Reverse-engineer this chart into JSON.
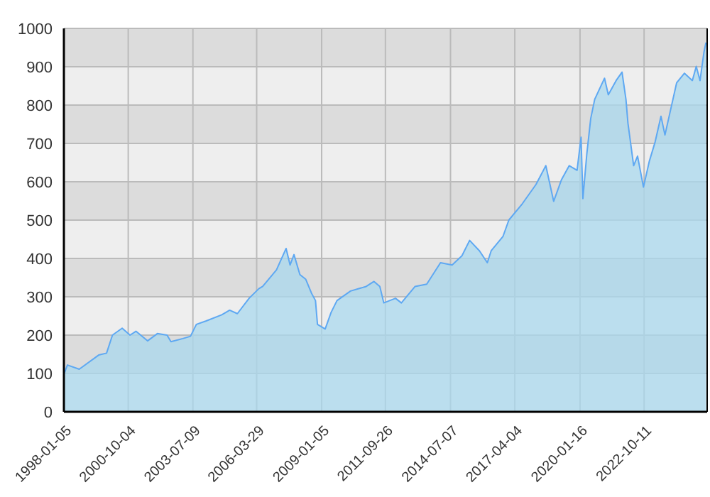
{
  "chart_data": {
    "type": "area",
    "x": [
      "1998-01-10",
      "1998-03",
      "1998-09",
      "1999-07",
      "1999-11",
      "2000-02",
      "2000-07",
      "2000-11",
      "2001-02",
      "2001-08",
      "2002-01",
      "2002-06",
      "2002-08",
      "2003-02",
      "2003-06",
      "2003-09",
      "2004-02",
      "2004-10",
      "2005-02",
      "2005-06",
      "2005-12",
      "2006-05",
      "2006-07",
      "2007-02",
      "2007-07",
      "2007-09",
      "2007-11",
      "2008-02",
      "2008-05",
      "2008-08",
      "2008-10",
      "2008-11",
      "2009-03",
      "2009-06",
      "2009-09",
      "2010-04",
      "2010-12",
      "2011-04",
      "2011-07",
      "2011-09",
      "2012-03",
      "2012-06",
      "2013-01",
      "2013-07",
      "2014-02",
      "2014-08",
      "2015-01",
      "2015-05",
      "2015-10",
      "2016-02",
      "2016-04",
      "2016-10",
      "2017-01",
      "2017-08",
      "2018-03",
      "2018-08",
      "2018-12",
      "2019-04",
      "2019-08",
      "2019-12",
      "2020-02",
      "2020-03",
      "2020-05",
      "2020-07",
      "2020-09",
      "2021-02",
      "2021-04",
      "2021-08",
      "2021-11",
      "2022-01",
      "2022-02",
      "2022-05",
      "2022-07",
      "2022-10",
      "2023-01",
      "2023-04",
      "2023-07",
      "2023-09",
      "2023-12",
      "2024-03",
      "2024-07",
      "2024-11",
      "2025-01",
      "2025-03",
      "2025-05",
      "2025-06"
    ],
    "series": [
      {
        "color": "#5ea8f2",
        "values": [
          100,
          122,
          111,
          148,
          153,
          200,
          218,
          200,
          210,
          185,
          204,
          200,
          183,
          191,
          197,
          228,
          237,
          253,
          265,
          256,
          296,
          321,
          327,
          370,
          426,
          383,
          410,
          358,
          346,
          309,
          290,
          228,
          216,
          259,
          290,
          315,
          327,
          340,
          327,
          284,
          296,
          284,
          327,
          333,
          389,
          383,
          407,
          447,
          420,
          389,
          420,
          457,
          500,
          543,
          593,
          642,
          549,
          605,
          642,
          630,
          716,
          556,
          673,
          765,
          815,
          870,
          827,
          864,
          886,
          815,
          753,
          642,
          667,
          586,
          654,
          704,
          771,
          722,
          790,
          858,
          883,
          864,
          901,
          864,
          938,
          963
        ]
      }
    ],
    "xlim": [
      "1998-01-05",
      "2025-06-20"
    ],
    "xticks": [
      "1998-01-05",
      "2000-10-04",
      "2003-07-09",
      "2006-03-29",
      "2009-01-05",
      "2011-09-26",
      "2014-07-07",
      "2017-04-04",
      "2020-01-16",
      "2022-10-11"
    ],
    "ylim": [
      0,
      1000
    ],
    "yticks": [
      0,
      100,
      200,
      300,
      400,
      500,
      600,
      700,
      800,
      900,
      1000
    ],
    "grid": true
  }
}
